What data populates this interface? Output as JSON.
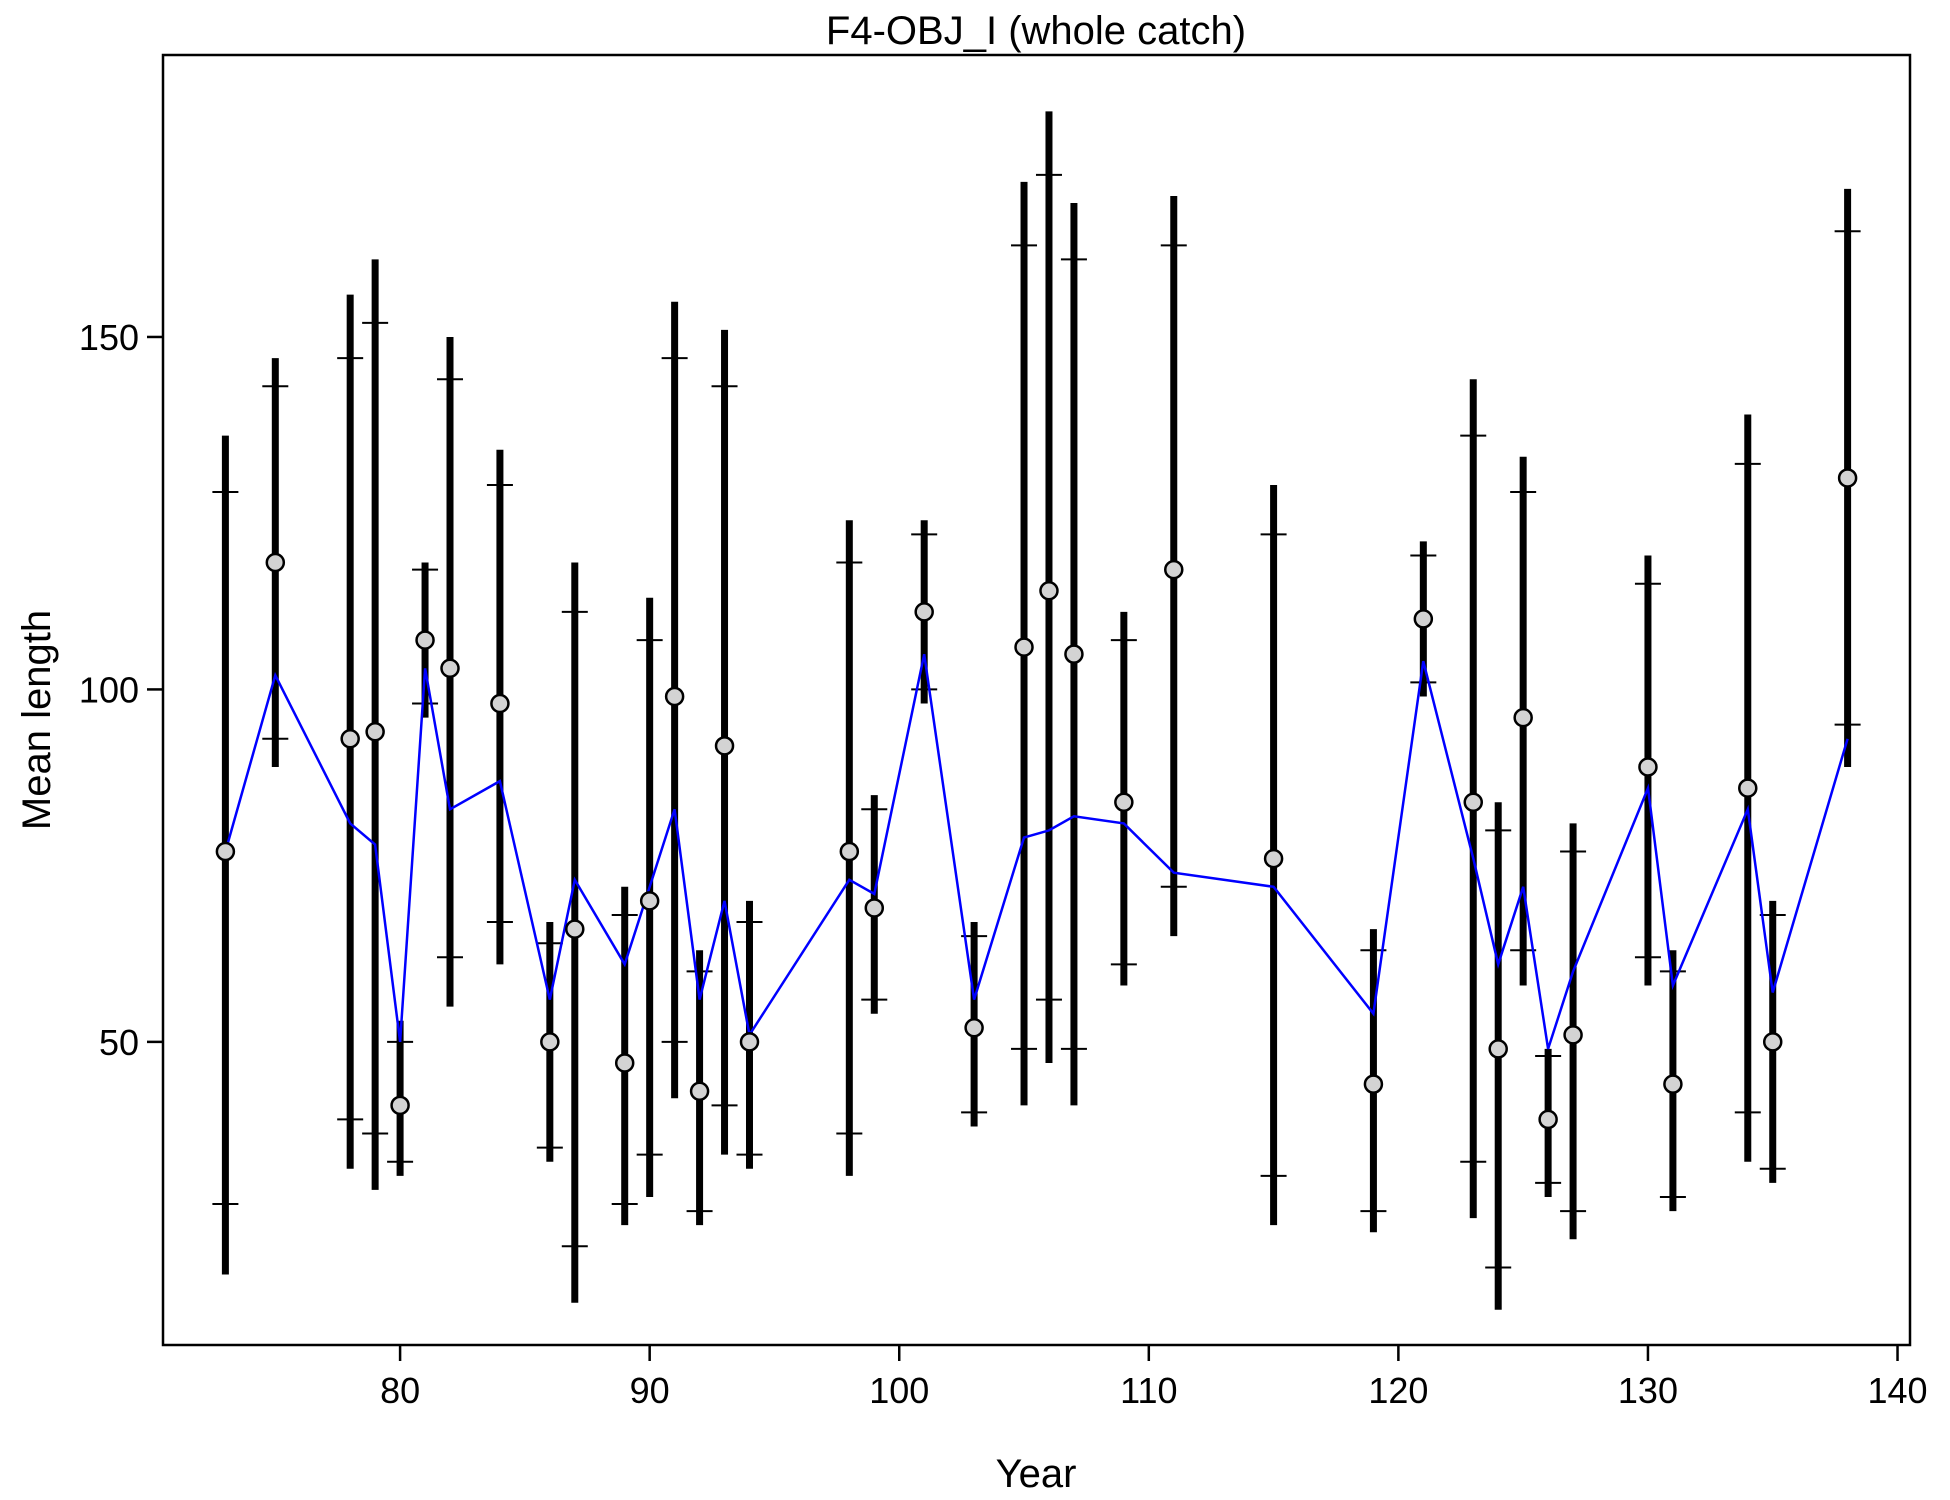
{
  "chart_data": {
    "type": "scatter",
    "title": "F4-OBJ_I (whole catch)",
    "xlabel": "Year",
    "ylabel": "Mean length",
    "xlim": [
      70.5,
      140.5
    ],
    "ylim": [
      7,
      190
    ],
    "xticks": [
      80,
      90,
      100,
      110,
      120,
      130,
      140
    ],
    "yticks": [
      50,
      100,
      150
    ],
    "grid": false,
    "colors": {
      "observed_fill": "#d3d3d3",
      "observed_stroke": "#000000",
      "expected_line": "#0000ff",
      "interval": "#000000"
    },
    "series": [
      {
        "kind": "observed",
        "points": [
          {
            "x": 73,
            "y": 77,
            "lo_inner": 27,
            "hi_inner": 128,
            "lo_outer": 17,
            "hi_outer": 136
          },
          {
            "x": 75,
            "y": 118,
            "lo_inner": 93,
            "hi_inner": 143,
            "lo_outer": 89,
            "hi_outer": 147
          },
          {
            "x": 78,
            "y": 93,
            "lo_inner": 39,
            "hi_inner": 147,
            "lo_outer": 32,
            "hi_outer": 156
          },
          {
            "x": 79,
            "y": 94,
            "lo_inner": 37,
            "hi_inner": 152,
            "lo_outer": 29,
            "hi_outer": 161
          },
          {
            "x": 80,
            "y": 41,
            "lo_inner": 33,
            "hi_inner": 50,
            "lo_outer": 31,
            "hi_outer": 53
          },
          {
            "x": 81,
            "y": 107,
            "lo_inner": 98,
            "hi_inner": 117,
            "lo_outer": 96,
            "hi_outer": 118
          },
          {
            "x": 82,
            "y": 103,
            "lo_inner": 62,
            "hi_inner": 144,
            "lo_outer": 55,
            "hi_outer": 150
          },
          {
            "x": 84,
            "y": 98,
            "lo_inner": 67,
            "hi_inner": 129,
            "lo_outer": 61,
            "hi_outer": 134
          },
          {
            "x": 86,
            "y": 50,
            "lo_inner": 35,
            "hi_inner": 64,
            "lo_outer": 33,
            "hi_outer": 67
          },
          {
            "x": 87,
            "y": 66,
            "lo_inner": 21,
            "hi_inner": 111,
            "lo_outer": 13,
            "hi_outer": 118
          },
          {
            "x": 89,
            "y": 47,
            "lo_inner": 27,
            "hi_inner": 68,
            "lo_outer": 24,
            "hi_outer": 72
          },
          {
            "x": 90,
            "y": 70,
            "lo_inner": 34,
            "hi_inner": 107,
            "lo_outer": 28,
            "hi_outer": 113
          },
          {
            "x": 91,
            "y": 99,
            "lo_inner": 50,
            "hi_inner": 147,
            "lo_outer": 42,
            "hi_outer": 155
          },
          {
            "x": 92,
            "y": 43,
            "lo_inner": 26,
            "hi_inner": 60,
            "lo_outer": 24,
            "hi_outer": 63
          },
          {
            "x": 93,
            "y": 92,
            "lo_inner": 41,
            "hi_inner": 143,
            "lo_outer": 34,
            "hi_outer": 151
          },
          {
            "x": 94,
            "y": 50,
            "lo_inner": 34,
            "hi_inner": 67,
            "lo_outer": 32,
            "hi_outer": 70
          },
          {
            "x": 98,
            "y": 77,
            "lo_inner": 37,
            "hi_inner": 118,
            "lo_outer": 31,
            "hi_outer": 124
          },
          {
            "x": 99,
            "y": 69,
            "lo_inner": 56,
            "hi_inner": 83,
            "lo_outer": 54,
            "hi_outer": 85
          },
          {
            "x": 101,
            "y": 111,
            "lo_inner": 100,
            "hi_inner": 122,
            "lo_outer": 98,
            "hi_outer": 124
          },
          {
            "x": 103,
            "y": 52,
            "lo_inner": 40,
            "hi_inner": 65,
            "lo_outer": 38,
            "hi_outer": 67
          },
          {
            "x": 105,
            "y": 106,
            "lo_inner": 49,
            "hi_inner": 163,
            "lo_outer": 41,
            "hi_outer": 172
          },
          {
            "x": 106,
            "y": 114,
            "lo_inner": 56,
            "hi_inner": 173,
            "lo_outer": 47,
            "hi_outer": 182
          },
          {
            "x": 107,
            "y": 105,
            "lo_inner": 49,
            "hi_inner": 161,
            "lo_outer": 41,
            "hi_outer": 169
          },
          {
            "x": 109,
            "y": 84,
            "lo_inner": 61,
            "hi_inner": 107,
            "lo_outer": 58,
            "hi_outer": 111
          },
          {
            "x": 111,
            "y": 117,
            "lo_inner": 72,
            "hi_inner": 163,
            "lo_outer": 65,
            "hi_outer": 170
          },
          {
            "x": 115,
            "y": 76,
            "lo_inner": 31,
            "hi_inner": 122,
            "lo_outer": 24,
            "hi_outer": 129
          },
          {
            "x": 119,
            "y": 44,
            "lo_inner": 26,
            "hi_inner": 63,
            "lo_outer": 23,
            "hi_outer": 66
          },
          {
            "x": 121,
            "y": 110,
            "lo_inner": 101,
            "hi_inner": 119,
            "lo_outer": 99,
            "hi_outer": 121
          },
          {
            "x": 123,
            "y": 84,
            "lo_inner": 33,
            "hi_inner": 136,
            "lo_outer": 25,
            "hi_outer": 144
          },
          {
            "x": 124,
            "y": 49,
            "lo_inner": 18,
            "hi_inner": 80,
            "lo_outer": 12,
            "hi_outer": 84
          },
          {
            "x": 125,
            "y": 96,
            "lo_inner": 63,
            "hi_inner": 128,
            "lo_outer": 58,
            "hi_outer": 133
          },
          {
            "x": 126,
            "y": 39,
            "lo_inner": 30,
            "hi_inner": 48,
            "lo_outer": 28,
            "hi_outer": 49
          },
          {
            "x": 127,
            "y": 51,
            "lo_inner": 26,
            "hi_inner": 77,
            "lo_outer": 22,
            "hi_outer": 81
          },
          {
            "x": 130,
            "y": 89,
            "lo_inner": 62,
            "hi_inner": 115,
            "lo_outer": 58,
            "hi_outer": 119
          },
          {
            "x": 131,
            "y": 44,
            "lo_inner": 28,
            "hi_inner": 60,
            "lo_outer": 26,
            "hi_outer": 63
          },
          {
            "x": 134,
            "y": 86,
            "lo_inner": 40,
            "hi_inner": 132,
            "lo_outer": 33,
            "hi_outer": 139
          },
          {
            "x": 135,
            "y": 50,
            "lo_inner": 32,
            "hi_inner": 68,
            "lo_outer": 30,
            "hi_outer": 70
          },
          {
            "x": 138,
            "y": 130,
            "lo_inner": 95,
            "hi_inner": 165,
            "lo_outer": 89,
            "hi_outer": 171
          }
        ]
      },
      {
        "kind": "expected",
        "x": [
          73,
          75,
          78,
          79,
          80,
          81,
          82,
          84,
          86,
          87,
          89,
          90,
          91,
          92,
          93,
          94,
          98,
          99,
          101,
          103,
          105,
          106,
          107,
          109,
          111,
          115,
          119,
          121,
          123,
          124,
          125,
          126,
          127,
          130,
          131,
          134,
          135,
          138
        ],
        "y": [
          77,
          102,
          81,
          78,
          50,
          103,
          83,
          87,
          56,
          73,
          61,
          72,
          83,
          56,
          70,
          51,
          73,
          71,
          105,
          56,
          79,
          80,
          82,
          81,
          74,
          72,
          54,
          104,
          76,
          61,
          72,
          49,
          60,
          86,
          58,
          83,
          57,
          93
        ]
      }
    ]
  }
}
